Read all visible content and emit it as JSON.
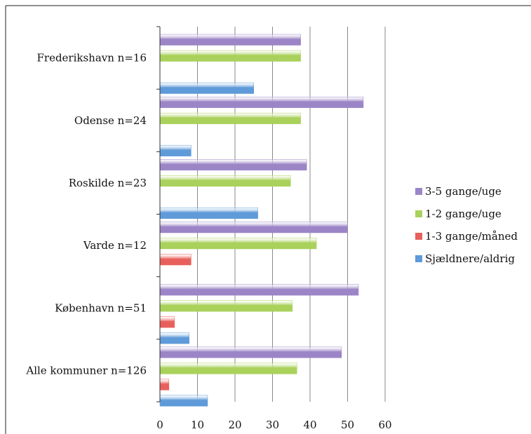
{
  "chart_data": {
    "type": "bar",
    "orientation": "horizontal",
    "categories": [
      "Frederikshavn n=16",
      "Odense n=24",
      "Roskilde n=23",
      "Varde n=12",
      "København n=51",
      "Alle kommuner n=126"
    ],
    "series": [
      {
        "name": "3-5 gange/uge",
        "color": "#9b85c6",
        "values": [
          37.5,
          54.2,
          39.1,
          50.0,
          52.9,
          48.4
        ]
      },
      {
        "name": "1-2 gange/uge",
        "color": "#a9d15b",
        "values": [
          37.5,
          37.5,
          34.8,
          41.7,
          35.3,
          36.5
        ]
      },
      {
        "name": "1-3 gange/måned",
        "color": "#e8605c",
        "values": [
          0,
          0,
          0,
          8.3,
          3.9,
          2.4
        ]
      },
      {
        "name": "Sjældnere/aldrig",
        "color": "#5f9ad9",
        "values": [
          25.0,
          8.3,
          26.1,
          0,
          7.8,
          12.7
        ]
      }
    ],
    "xlim": [
      0,
      60
    ],
    "xticks": [
      "0",
      "10",
      "20",
      "30",
      "40",
      "50",
      "60"
    ],
    "grid": true,
    "legend_position": "right"
  }
}
